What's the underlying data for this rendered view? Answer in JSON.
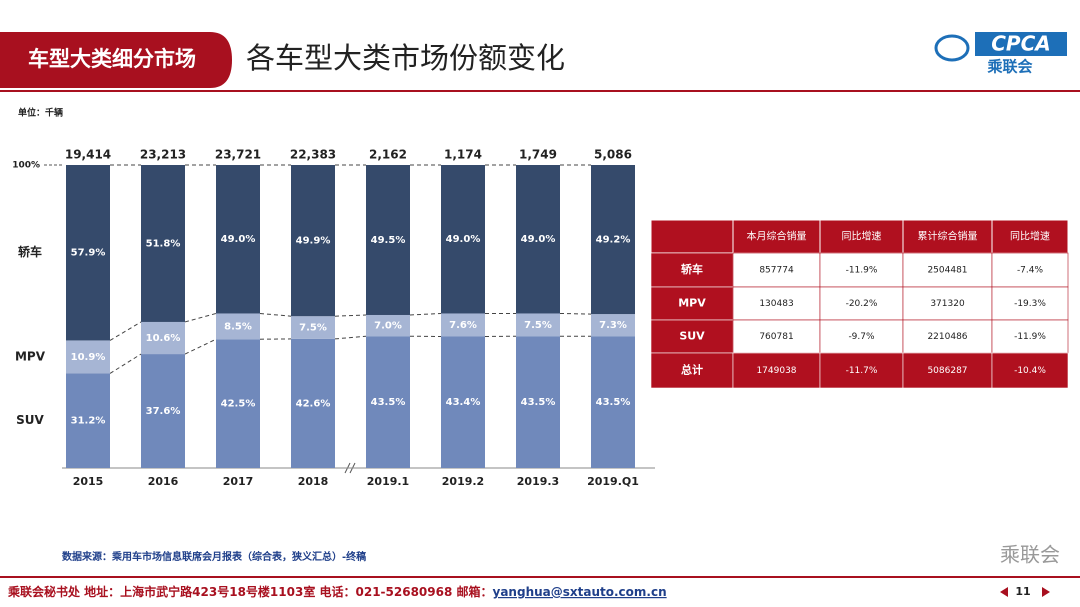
{
  "header": {
    "section": "车型大类细分市场",
    "title": "各车型大类市场份额变化",
    "logo_text": "CPCA",
    "logo_sub": "乘联会"
  },
  "unit": "单位：千辆",
  "chart_data": {
    "type": "stacked_bar",
    "categories": [
      "2015",
      "2016",
      "2017",
      "2018",
      "2019.1",
      "2019.2",
      "2019.3",
      "2019.Q1"
    ],
    "totals": [
      {
        "value": 19414,
        "label": "19,414"
      },
      {
        "value": 23213,
        "label": "23,213"
      },
      {
        "value": 23721,
        "label": "23,721"
      },
      {
        "value": 22383,
        "label": "22,383"
      },
      {
        "value": 2162,
        "label": "2,162"
      },
      {
        "value": 1174,
        "label": "1,174"
      },
      {
        "value": 1749,
        "label": "1,749"
      },
      {
        "value": 5086,
        "label": "5,086"
      }
    ],
    "series": [
      {
        "name": "SUV",
        "color": "#7089bb",
        "values": [
          31.2,
          37.6,
          42.5,
          42.6,
          43.5,
          43.4,
          43.5,
          43.5
        ],
        "value_labels": [
          "31.2%",
          "37.6%",
          "42.5%",
          "42.6%",
          "43.5%",
          "43.4%",
          "43.5%",
          "43.5%"
        ]
      },
      {
        "name": "MPV",
        "color": "#a6b5d4",
        "values": [
          10.9,
          10.6,
          8.5,
          7.5,
          7.0,
          7.6,
          7.5,
          7.3
        ],
        "value_labels": [
          "10.9%",
          "10.6%",
          "8.5%",
          "7.5%",
          "7.0%",
          "7.6%",
          "7.5%",
          "7.3%"
        ]
      },
      {
        "name": "轿车",
        "color": "#354a6b",
        "values": [
          57.9,
          51.8,
          49.0,
          49.9,
          49.5,
          49.0,
          49.0,
          49.2
        ],
        "value_labels": [
          "57.9%",
          "51.8%",
          "49.0%",
          "49.9%",
          "49.5%",
          "49.0%",
          "49.0%",
          "49.2%"
        ]
      }
    ],
    "ylim": [
      0,
      100
    ],
    "yticks": [
      {
        "value": 100,
        "label": "100%"
      }
    ],
    "grid": false
  },
  "table": {
    "header": [
      "本月综合销量",
      "同比增速",
      "累计综合销量",
      "同比增速"
    ],
    "rows": [
      [
        "轿车",
        "857774",
        "-11.9%",
        "2504481",
        "-7.4%"
      ],
      [
        "MPV",
        "130483",
        "-20.2%",
        "371320",
        "-19.3%"
      ],
      [
        "SUV",
        "760781",
        "-9.7%",
        "2210486",
        "-11.9%"
      ],
      [
        "总计",
        "1749038",
        "-11.7%",
        "5086287",
        "-10.4%"
      ]
    ]
  },
  "source": "数据来源：乘用车市场信息联席会月报表（综合表，狭义汇总）-终稿",
  "watermark": "乘联会",
  "footer": {
    "text": "乘联会秘书处  地址：上海市武宁路423号18号楼1103室  电话：021-52680968  邮箱：",
    "email": "yanghua@sxtauto.com.cn",
    "page": "11"
  }
}
